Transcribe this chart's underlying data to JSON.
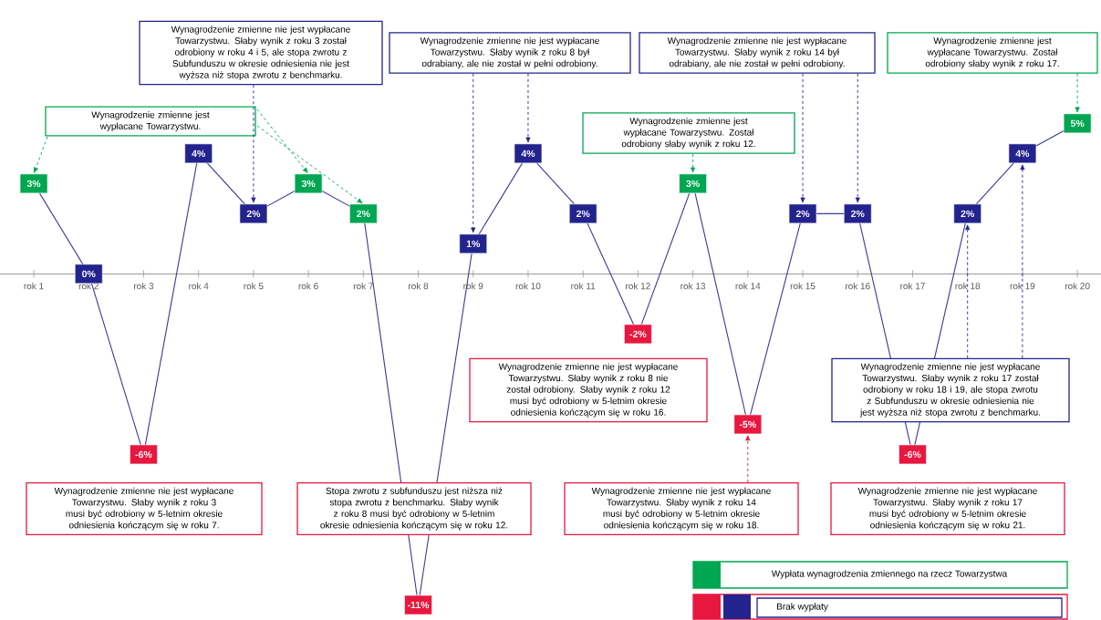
{
  "chart_data": {
    "type": "line",
    "categories": [
      "rok 1",
      "rok 2",
      "rok 3",
      "rok 4",
      "rok 5",
      "rok 6",
      "rok 7",
      "rok 8",
      "rok 9",
      "rok 10",
      "rok 11",
      "rok 12",
      "rok 13",
      "rok 14",
      "rok 15",
      "rok 16",
      "rok 17",
      "rok 18",
      "rok 19",
      "rok 20"
    ],
    "series": [
      {
        "color": "#3a3a96",
        "values": [
          3,
          0,
          -6,
          4,
          2,
          3,
          2,
          -11,
          1,
          4,
          2,
          -2,
          3,
          -5,
          2,
          2,
          -6,
          2,
          4,
          5
        ],
        "colors": [
          "#00a651",
          "#23238e",
          "#e8173f",
          "#23238e",
          "#23238e",
          "#00a651",
          "#00a651",
          "#e8173f",
          "#23238e",
          "#23238e",
          "#23238e",
          "#e8173f",
          "#00a651",
          "#e8173f",
          "#23238e",
          "#23238e",
          "#e8173f",
          "#23238e",
          "#23238e",
          "#00a651"
        ],
        "value_labels": [
          "3%",
          "0%",
          "-6%",
          "4%",
          "2%",
          "3%",
          "2%",
          "-11%",
          "1%",
          "4%",
          "2%",
          "-2%",
          "3%",
          "-5%",
          "2%",
          "2%",
          "-6%",
          "2%",
          "4%",
          "5%"
        ]
      }
    ],
    "marker": "square",
    "tick_labels": "x",
    "annotations": [
      "Wynagrodzenie zmienne jest wypłacane Towarzystwu.",
      "Wynagrodzenie zmienne nie jest wypłacane Towarzystwu. Słaby wynik z roku 3 został odrobiony w roku 4 i 5, ale stopa zwrotu z Subfunduszu w okresie odniesienia nie jest wyższa niż stopa zwrotu z benchmarku.",
      "Wynagrodzenie zmienne nie jest wypłacane Towarzystwu. Słaby wynik z roku 8 był odrabiany, ale nie został w pełni odrobiony.",
      "Wynagrodzenie zmienne jest wypłacane Towarzystwu. Został odrobiony słaby wynik z roku 12.",
      "Wynagrodzenie zmienne nie jest wypłacane Towarzystwu. Słaby wynik z roku 14 był odrabiany, ale nie został w pełni odrobiony.",
      "Wynagrodzenie zmienne jest wypłacane Towarzystwu. Został odrobiony słaby wynik z roku 17.",
      "Wynagrodzenie zmienne nie jest wypłacane Towarzystwu. Słaby wynik z roku 3 musi być odrobiony w 5-letnim okresie odniesienia kończącym się w roku 7.",
      "Stopa zwrotu z subfunduszu jest niższa niż stopa zwrotu z benchmarku. Słaby wynik z roku 8 musi być odrobiony w 5-letnim okresie odniesienia kończącym się w roku 12.",
      "Wynagrodzenie zmienne nie jest wypłacane Towarzystwu. Słaby wynik z roku 8 nie został odrobiony. Słaby wynik z roku 12 musi być odrobiony w 5-letnim okresie odniesienia kończącym się w roku 16.",
      "Wynagrodzenie zmienne nie jest wypłacane Towarzystwu. Słaby wynik z roku 14 musi być odrobiony w 5-letnim okresie odniesienia kończącym się w roku 18.",
      "Wynagrodzenie zmienne nie jest wypłacane Towarzystwu. Słaby wynik z roku 17 został odrobiony w roku 18 i 19, ale stopa zwrotu z Subfunduszu w okresie odniesienia nie jest wyższa niż stopa zwrotu z benchmarku.",
      "Wynagrodzenie zmienne nie jest wypłacane Towarzystwu. Słaby wynik z roku 17 musi być odrobiony w 5-letnim okresie odniesienia kończącym się w roku 21.",
      "Wypłata wynagrodzenia zmiennego na rzecz Towarzystwa",
      "Brak wypłaty"
    ]
  }
}
